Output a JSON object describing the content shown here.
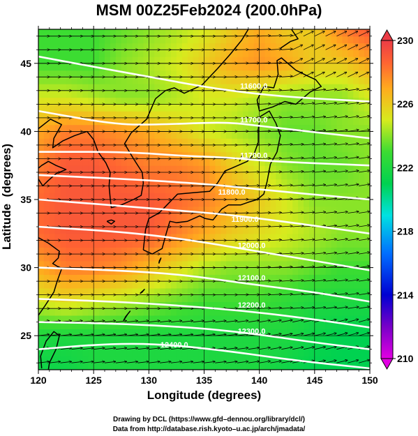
{
  "chart_data": {
    "type": "heatmap",
    "title": "MSM 00Z25Feb2024 (200.0hPa)",
    "xlabel": "Longitude (degrees)",
    "ylabel": "Latitude  (degrees)",
    "xlim": [
      120,
      150
    ],
    "ylim": [
      22.5,
      47.5
    ],
    "x_ticks": [
      120,
      125,
      130,
      135,
      140,
      145,
      150
    ],
    "y_ticks": [
      25,
      30,
      35,
      40,
      45
    ],
    "x_tick_labels": [
      "120",
      "125",
      "130",
      "135",
      "140",
      "145",
      "150"
    ],
    "y_tick_labels": [
      "25",
      "30",
      "35",
      "40",
      "45"
    ],
    "grid": true,
    "colorbar": {
      "min": 210,
      "max": 230,
      "ticks": [
        210,
        214,
        218,
        222,
        226,
        230
      ],
      "tick_labels": [
        "210",
        "214",
        "218",
        "222",
        "226",
        "230"
      ]
    },
    "temperature_field": {
      "note_rows": "rows from lat 47.5 down to 22.5 step 2.5; cols lon 120..150 step 2.5",
      "lat": [
        47.5,
        45,
        42.5,
        40,
        37.5,
        35,
        32.5,
        30,
        27.5,
        25,
        22.5
      ],
      "lon": [
        120,
        122.5,
        125,
        127.5,
        130,
        132.5,
        135,
        137.5,
        140,
        142.5,
        145,
        147.5,
        150
      ],
      "values": [
        [
          223,
          223,
          223,
          223.5,
          224,
          224.5,
          225,
          226,
          227,
          226,
          226,
          228,
          229
        ],
        [
          223,
          223,
          223,
          224,
          224.5,
          225,
          226,
          227,
          227.5,
          227,
          226,
          226,
          227
        ],
        [
          225,
          225,
          224.5,
          224,
          224,
          224.5,
          225,
          225,
          224.5,
          224,
          224,
          224,
          225
        ],
        [
          227,
          228,
          228,
          227.5,
          227,
          226,
          225,
          224.5,
          224,
          223.5,
          223.5,
          224,
          224
        ],
        [
          228,
          229,
          229,
          228.5,
          228,
          228,
          227.5,
          226,
          225,
          224,
          223.5,
          223.5,
          224
        ],
        [
          228.5,
          229,
          229,
          229,
          229,
          228.5,
          228,
          227,
          226,
          225,
          224,
          224,
          224
        ],
        [
          228.5,
          229,
          229,
          229,
          229,
          228,
          227,
          226,
          225.5,
          225,
          224.5,
          224,
          224
        ],
        [
          227,
          228,
          228,
          227.5,
          226.5,
          225.5,
          224.5,
          224,
          224,
          224,
          223.5,
          223,
          223
        ],
        [
          225,
          225.5,
          225,
          224.5,
          224,
          223.5,
          223,
          223,
          223,
          222.5,
          222,
          222,
          222
        ],
        [
          222,
          222,
          222,
          222,
          222,
          222,
          222,
          222,
          222,
          222,
          221.5,
          221,
          221
        ],
        [
          221.5,
          221.5,
          222,
          222,
          222,
          222,
          222,
          222,
          222,
          221.5,
          221,
          221,
          221
        ]
      ]
    },
    "geopotential_height_contours": [
      {
        "label": "11600.0",
        "points": [
          [
            120,
            45.5
          ],
          [
            130,
            44
          ],
          [
            137,
            43
          ],
          [
            143,
            42.5
          ],
          [
            150,
            42.2
          ]
        ]
      },
      {
        "label": "11700.0",
        "points": [
          [
            120,
            41.5
          ],
          [
            127,
            40.5
          ],
          [
            131,
            40.5
          ],
          [
            137,
            40.7
          ],
          [
            140,
            40.4
          ],
          [
            150,
            39.5
          ]
        ]
      },
      {
        "label": "11700.0",
        "points": [
          [
            120,
            38.5
          ],
          [
            128,
            38.5
          ],
          [
            133,
            38.2
          ],
          [
            137,
            38.1
          ],
          [
            141,
            37.8
          ],
          [
            150,
            37.5
          ]
        ]
      },
      {
        "label": "11800.0",
        "points": [
          [
            120,
            36.8
          ],
          [
            128,
            36.5
          ],
          [
            134,
            36.2
          ],
          [
            137,
            36
          ],
          [
            143,
            35.5
          ],
          [
            150,
            35
          ]
        ]
      },
      {
        "label": "11900.0",
        "points": [
          [
            120,
            35
          ],
          [
            128,
            34.5
          ],
          [
            134,
            34.1
          ],
          [
            137,
            33.9
          ],
          [
            143,
            33.3
          ],
          [
            150,
            32.5
          ]
        ]
      },
      {
        "label": "12000.0",
        "points": [
          [
            120,
            33
          ],
          [
            128,
            32.6
          ],
          [
            134,
            32
          ],
          [
            139,
            31.3
          ],
          [
            145,
            30.5
          ],
          [
            150,
            29.8
          ]
        ]
      },
      {
        "label": "12100.0",
        "points": [
          [
            120,
            30
          ],
          [
            127,
            29.8
          ],
          [
            133,
            29.5
          ],
          [
            139,
            28.8
          ],
          [
            145,
            28.2
          ],
          [
            150,
            27.5
          ]
        ]
      },
      {
        "label": "12200.0",
        "points": [
          [
            120,
            27.7
          ],
          [
            127,
            27.5
          ],
          [
            133,
            27.2
          ],
          [
            139,
            26.8
          ],
          [
            145,
            26.2
          ],
          [
            150,
            25.6
          ]
        ]
      },
      {
        "label": "12300.0",
        "points": [
          [
            120,
            26
          ],
          [
            127,
            25.9
          ],
          [
            134,
            25.6
          ],
          [
            139,
            25.2
          ],
          [
            145,
            24.5
          ],
          [
            150,
            24
          ]
        ]
      },
      {
        "label": "12400.0",
        "points": [
          [
            120,
            24
          ],
          [
            126,
            24.4
          ],
          [
            131,
            24.4
          ],
          [
            137,
            23.9
          ],
          [
            143,
            23.2
          ],
          [
            150,
            22.6
          ]
        ]
      }
    ],
    "contour_labels": [
      {
        "text": "11600.0",
        "x": 139.5,
        "y": 43.3
      },
      {
        "text": "11700.0",
        "x": 139.5,
        "y": 40.8
      },
      {
        "text": "11700.0",
        "x": 139.5,
        "y": 38.2
      },
      {
        "text": "11800.0",
        "x": 137.5,
        "y": 35.5
      },
      {
        "text": "11900.0",
        "x": 138.7,
        "y": 33.5
      },
      {
        "text": "12000.0",
        "x": 139.3,
        "y": 31.6
      },
      {
        "text": "12100.0",
        "x": 139.3,
        "y": 29.2
      },
      {
        "text": "12200.0",
        "x": 139.3,
        "y": 27.2
      },
      {
        "text": "12300.0",
        "x": 139.3,
        "y": 25.3
      },
      {
        "text": "12400.0",
        "x": 132.3,
        "y": 24.3
      }
    ],
    "wind_vectors": {
      "lon_start": 120.5,
      "lon_end": 150,
      "lon_step": 1,
      "lat_start": 23,
      "lat_end": 47.5,
      "lat_step": 1
    },
    "coastlines": [
      {
        "name": "Japan (Honshu/Kyushu/Shikoku)",
        "points": [
          [
            129.5,
            31.3
          ],
          [
            130.3,
            31.0
          ],
          [
            131.2,
            31.4
          ],
          [
            131.6,
            32.6
          ],
          [
            131.9,
            33.4
          ],
          [
            132.5,
            33.3
          ],
          [
            133.5,
            33.4
          ],
          [
            134.6,
            33.8
          ],
          [
            135.1,
            33.6
          ],
          [
            135.8,
            33.5
          ],
          [
            136.6,
            34.3
          ],
          [
            137.2,
            34.6
          ],
          [
            138.3,
            34.6
          ],
          [
            139.0,
            34.8
          ],
          [
            139.8,
            35.0
          ],
          [
            140.4,
            35.4
          ],
          [
            140.7,
            36.3
          ],
          [
            141.0,
            37.6
          ],
          [
            141.6,
            38.5
          ],
          [
            141.9,
            39.7
          ],
          [
            141.5,
            40.6
          ],
          [
            140.9,
            41.5
          ],
          [
            140.1,
            41.1
          ],
          [
            139.9,
            40.2
          ],
          [
            139.9,
            39.2
          ],
          [
            139.5,
            38.3
          ],
          [
            138.9,
            37.8
          ],
          [
            137.5,
            37.3
          ],
          [
            136.9,
            37.1
          ],
          [
            136.2,
            36.2
          ],
          [
            135.5,
            35.6
          ],
          [
            134.0,
            35.5
          ],
          [
            132.6,
            35.4
          ],
          [
            131.4,
            34.4
          ],
          [
            130.9,
            34.0
          ],
          [
            130.0,
            33.6
          ],
          [
            129.7,
            32.8
          ],
          [
            129.5,
            31.3
          ]
        ]
      },
      {
        "name": "Hokkaido",
        "points": [
          [
            140.0,
            41.5
          ],
          [
            141.2,
            41.8
          ],
          [
            142.3,
            42.2
          ],
          [
            143.3,
            42.0
          ],
          [
            144.6,
            42.9
          ],
          [
            145.6,
            43.3
          ],
          [
            145.1,
            43.8
          ],
          [
            144.3,
            44.1
          ],
          [
            143.3,
            44.5
          ],
          [
            142.0,
            45.4
          ],
          [
            141.6,
            45.2
          ],
          [
            141.7,
            44.2
          ],
          [
            141.3,
            43.2
          ],
          [
            140.4,
            43.3
          ],
          [
            139.8,
            42.3
          ],
          [
            140.0,
            41.5
          ]
        ]
      },
      {
        "name": "Sakhalin",
        "points": [
          [
            141.9,
            46.1
          ],
          [
            142.8,
            46.6
          ],
          [
            143.5,
            46.8
          ],
          [
            142.9,
            47.5
          ]
        ]
      },
      {
        "name": "Korean Peninsula",
        "points": [
          [
            124.4,
            40.0
          ],
          [
            125.0,
            39.4
          ],
          [
            125.4,
            38.5
          ],
          [
            126.1,
            37.7
          ],
          [
            126.5,
            37.0
          ],
          [
            126.4,
            36.0
          ],
          [
            126.5,
            35.1
          ],
          [
            126.6,
            34.4
          ],
          [
            127.5,
            34.6
          ],
          [
            128.6,
            35.0
          ],
          [
            129.3,
            35.3
          ],
          [
            129.5,
            36.2
          ],
          [
            129.4,
            37.0
          ],
          [
            128.6,
            38.0
          ],
          [
            127.8,
            39.1
          ],
          [
            128.4,
            39.9
          ],
          [
            129.8,
            40.9
          ],
          [
            130.6,
            42.4
          ]
        ]
      },
      {
        "name": "China / Russia coast",
        "points": [
          [
            120.0,
            40.2
          ],
          [
            121.1,
            40.9
          ],
          [
            122.1,
            40.5
          ],
          [
            121.4,
            39.5
          ],
          [
            121.3,
            38.8
          ],
          [
            122.2,
            39.3
          ],
          [
            123.3,
            39.7
          ],
          [
            124.4,
            40.0
          ]
        ]
      },
      {
        "name": "Primorye coast",
        "points": [
          [
            130.6,
            42.4
          ],
          [
            131.5,
            43.0
          ],
          [
            132.3,
            43.2
          ],
          [
            133.2,
            42.8
          ],
          [
            134.8,
            43.4
          ],
          [
            136.2,
            44.6
          ],
          [
            137.4,
            45.7
          ],
          [
            138.4,
            46.7
          ],
          [
            139.0,
            47.5
          ]
        ]
      },
      {
        "name": "Shandong",
        "points": [
          [
            120.0,
            36.5
          ],
          [
            120.4,
            36.0
          ],
          [
            120.9,
            36.4
          ],
          [
            121.6,
            36.9
          ],
          [
            122.5,
            37.2
          ],
          [
            121.6,
            37.5
          ],
          [
            120.9,
            37.8
          ],
          [
            120.3,
            37.5
          ],
          [
            120.0,
            37.3
          ]
        ]
      },
      {
        "name": "China east coast",
        "points": [
          [
            120.0,
            32.2
          ],
          [
            120.9,
            31.8
          ],
          [
            121.9,
            31.2
          ],
          [
            121.8,
            30.7
          ],
          [
            121.3,
            30.3
          ],
          [
            122.1,
            29.9
          ],
          [
            121.7,
            29.0
          ],
          [
            121.4,
            28.2
          ],
          [
            120.6,
            27.2
          ],
          [
            120.0,
            26.5
          ]
        ]
      },
      {
        "name": "Taiwan",
        "points": [
          [
            120.9,
            22.5
          ],
          [
            121.0,
            23.0
          ],
          [
            121.6,
            24.0
          ],
          [
            121.9,
            25.0
          ],
          [
            121.4,
            25.3
          ],
          [
            120.7,
            24.6
          ],
          [
            120.2,
            23.5
          ],
          [
            120.3,
            22.6
          ]
        ]
      },
      {
        "name": "Jeju",
        "points": [
          [
            126.2,
            33.4
          ],
          [
            126.6,
            33.5
          ],
          [
            126.9,
            33.4
          ],
          [
            126.6,
            33.2
          ],
          [
            126.2,
            33.4
          ]
        ]
      },
      {
        "name": "Ryukyu (Okinawa)",
        "points": [
          [
            127.7,
            26.1
          ],
          [
            128.1,
            26.6
          ],
          [
            128.3,
            26.8
          ],
          [
            127.9,
            26.4
          ],
          [
            127.7,
            26.1
          ]
        ]
      },
      {
        "name": "Amami",
        "points": [
          [
            129.2,
            28.1
          ],
          [
            129.6,
            28.4
          ],
          [
            129.4,
            28.2
          ],
          [
            129.2,
            28.1
          ]
        ]
      },
      {
        "name": "Tanegashima",
        "points": [
          [
            130.9,
            30.3
          ],
          [
            131.1,
            30.7
          ],
          [
            130.95,
            30.5
          ],
          [
            130.9,
            30.3
          ]
        ]
      },
      {
        "name": "Sado",
        "points": [
          [
            138.2,
            37.8
          ],
          [
            138.5,
            38.3
          ],
          [
            138.3,
            38.0
          ],
          [
            138.2,
            37.8
          ]
        ]
      }
    ]
  },
  "credits": {
    "line1": "Drawing by DCL (https://www.gfd–dennou.org/library/dcl/)",
    "line2": "Data from http://database.rish.kyoto–u.ac.jp/arch/jmadata/"
  }
}
